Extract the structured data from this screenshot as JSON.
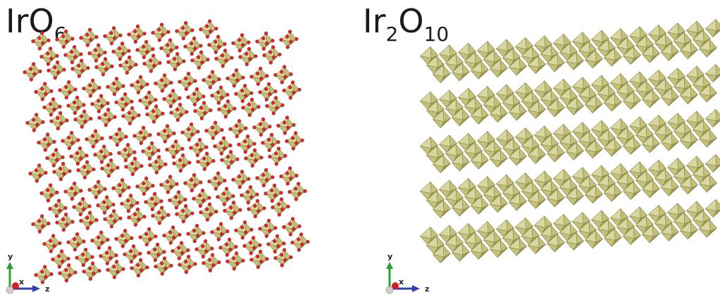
{
  "panels": [
    {
      "formula": {
        "base_1": "IrO",
        "sub_1": "6",
        "base_2": "",
        "sub_2": ""
      },
      "show_oxygen_atoms": true,
      "axes": {
        "vertical": "y",
        "out_of_plane": "x",
        "horizontal": "z"
      }
    },
    {
      "formula": {
        "base_1": "Ir",
        "sub_1": "2",
        "base_2": "O",
        "sub_2": "10"
      },
      "show_oxygen_atoms": false,
      "axes": {
        "vertical": "y",
        "out_of_plane": "x",
        "horizontal": "z"
      }
    }
  ],
  "colors": {
    "octahedron_light": "#d9d7a0",
    "octahedron_mid": "#c2c07a",
    "octahedron_dark": "#9c9a55",
    "octahedron_edge": "#7e7c3c",
    "oxygen": "#d8262a",
    "axis_y": "#2aa135",
    "axis_x": "#d42020",
    "axis_z": "#2e3fa8",
    "origin_sphere": "#cfcfcf"
  }
}
